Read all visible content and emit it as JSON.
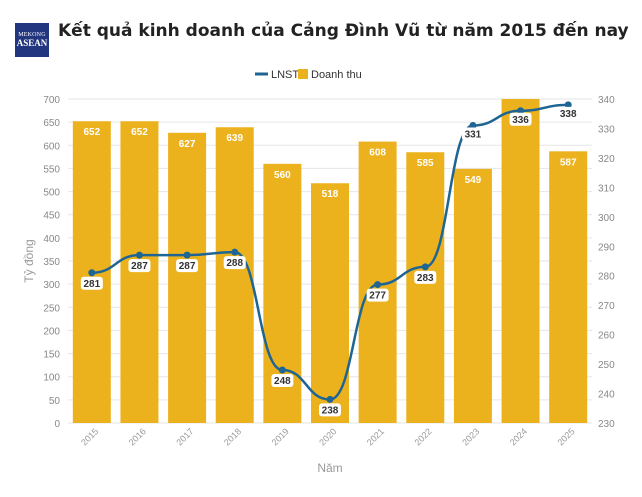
{
  "header": {
    "title": "Kết quả kinh doanh của Cảng Đình Vũ từ năm 2015 đến nay",
    "logo_text": "MEKONG ASEAN"
  },
  "chart_data": {
    "type": "bar+line",
    "title": "Kết quả kinh doanh của Cảng Đình Vũ từ năm 2015 đến nay",
    "xlabel": "Năm",
    "ylabel": "Tỷ đồng",
    "categories": [
      "2015",
      "2016",
      "2017",
      "2018",
      "2019",
      "2020",
      "2021",
      "2022",
      "2023",
      "2024",
      "2025"
    ],
    "legend_position": "top",
    "grid": true,
    "series": [
      {
        "name": "Doanh thu",
        "type": "bar",
        "axis": "left",
        "color": "#ebb21d",
        "values": [
          652,
          652,
          627,
          639,
          560,
          518,
          608,
          585,
          549,
          700,
          587
        ],
        "labels": [
          "652",
          "652",
          "627",
          "639",
          "560",
          "518",
          "608",
          "585",
          "549",
          "",
          "587"
        ]
      },
      {
        "name": "LNST",
        "type": "line",
        "axis": "right",
        "color": "#1f6594",
        "values": [
          281,
          287,
          287,
          288,
          248,
          238,
          277,
          283,
          331,
          336,
          338
        ],
        "labels": [
          "281",
          "287",
          "287",
          "288",
          "248",
          "238",
          "277",
          "283",
          "331",
          "336",
          "338"
        ]
      }
    ],
    "ylim_left": [
      0,
      700
    ],
    "yticks_left": [
      0,
      50,
      100,
      150,
      200,
      250,
      300,
      350,
      400,
      450,
      500,
      550,
      600,
      650,
      700
    ],
    "ylim_right": [
      230,
      340
    ],
    "yticks_right": [
      230,
      240,
      250,
      260,
      270,
      280,
      290,
      300,
      310,
      320,
      330,
      340
    ]
  }
}
